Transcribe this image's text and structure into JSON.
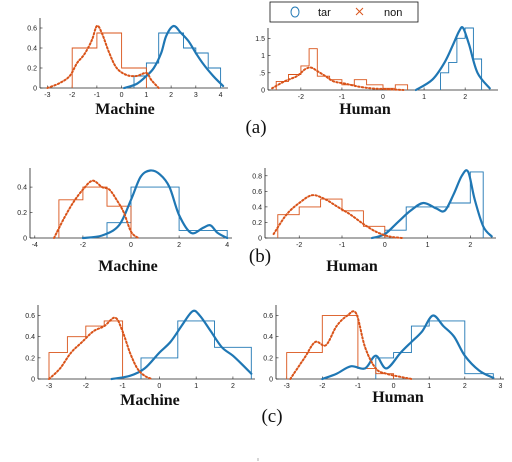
{
  "legend": {
    "items": [
      {
        "label": "tar",
        "marker": "o",
        "color": "#1f77b4"
      },
      {
        "label": "non",
        "marker": "x",
        "color": "#d95319"
      }
    ],
    "placement": "top-center"
  },
  "colors": {
    "tar": "#1f77b4",
    "non": "#d95319"
  },
  "panel_labels": [
    "(a)",
    "(b)",
    "(c)"
  ],
  "chart_data": [
    {
      "type": "area",
      "row": "(a)",
      "xlabel": "Machine",
      "ylabel": "",
      "xlim": [
        -3.3,
        4.3
      ],
      "ylim": [
        0,
        0.7
      ],
      "xticks": [
        -3,
        -2,
        -1,
        0,
        1,
        2,
        3,
        4
      ],
      "yticks": [
        0,
        0.2,
        0.4,
        0.6
      ],
      "xtick_labels": [
        "-3",
        "-2",
        "-1",
        "0",
        "1",
        "2",
        "3",
        "4"
      ],
      "ytick_labels": [
        "0",
        "0.2",
        "0.4",
        "0.6"
      ],
      "series": [
        {
          "name": "tar",
          "style": "solid",
          "color": "#1f77b4",
          "x": [
            0.1,
            0.6,
            1.0,
            1.3,
            1.6,
            1.8,
            2.1,
            2.4,
            2.7,
            3.0,
            3.3,
            3.7,
            4.1
          ],
          "y": [
            0.0,
            0.04,
            0.12,
            0.2,
            0.35,
            0.52,
            0.62,
            0.55,
            0.47,
            0.35,
            0.24,
            0.12,
            0.02
          ]
        },
        {
          "name": "non",
          "style": "dotted",
          "color": "#d95319",
          "x": [
            -3.0,
            -2.5,
            -2.1,
            -1.8,
            -1.5,
            -1.2,
            -1.0,
            -0.8,
            -0.5,
            -0.2,
            0.2,
            0.6,
            1.0,
            1.2,
            1.5
          ],
          "y": [
            0.0,
            0.05,
            0.12,
            0.25,
            0.34,
            0.48,
            0.62,
            0.55,
            0.35,
            0.2,
            0.13,
            0.12,
            0.15,
            0.08,
            0.0
          ]
        }
      ],
      "histograms": [
        {
          "name": "tar",
          "color": "#1f77b4",
          "edges": [
            0.5,
            1.0,
            1.5,
            2.0,
            2.5,
            3.0,
            3.5,
            4.0
          ],
          "heights": [
            0.12,
            0.25,
            0.55,
            0.55,
            0.4,
            0.35,
            0.2
          ]
        },
        {
          "name": "non",
          "color": "#d95319",
          "edges": [
            -2.0,
            -1.0,
            0.0,
            1.0
          ],
          "heights": [
            0.4,
            0.55,
            0.2
          ]
        }
      ]
    },
    {
      "type": "area",
      "row": "(a)",
      "xlabel": "Human",
      "ylabel": "",
      "xlim": [
        -2.8,
        2.8
      ],
      "ylim": [
        0,
        1.8
      ],
      "xticks": [
        -2,
        -1,
        0,
        1,
        2
      ],
      "yticks": [
        0,
        0.5,
        1,
        1.5
      ],
      "xtick_labels": [
        "-2",
        "-1",
        "0",
        "1",
        "2"
      ],
      "ytick_labels": [
        "0",
        ".5",
        "1",
        "1.5"
      ],
      "series": [
        {
          "name": "tar",
          "style": "solid",
          "color": "#1f77b4",
          "x": [
            0.8,
            1.2,
            1.5,
            1.7,
            1.85,
            1.95,
            2.1,
            2.3,
            2.6
          ],
          "y": [
            0.0,
            0.3,
            0.8,
            1.3,
            1.7,
            1.8,
            1.3,
            0.5,
            0.05
          ]
        },
        {
          "name": "non",
          "style": "dotted",
          "color": "#d95319",
          "x": [
            -2.7,
            -2.4,
            -2.1,
            -1.9,
            -1.75,
            -1.6,
            -1.4,
            -1.2,
            -0.9,
            -0.6,
            -0.3,
            0.0,
            0.5
          ],
          "y": [
            0.05,
            0.25,
            0.4,
            0.6,
            0.65,
            0.55,
            0.4,
            0.25,
            0.18,
            0.1,
            0.05,
            0.03,
            0.0
          ]
        }
      ],
      "histograms": [
        {
          "name": "tar",
          "color": "#1f77b4",
          "edges": [
            1.4,
            1.6,
            1.8,
            2.0,
            2.2,
            2.4
          ],
          "heights": [
            0.5,
            0.8,
            1.5,
            1.8,
            0.9
          ]
        },
        {
          "name": "non",
          "color": "#d95319",
          "edges": [
            -2.6,
            -2.3,
            -2.0,
            -1.8,
            -1.6,
            -1.3,
            -1.0,
            -0.7,
            -0.4,
            0.0,
            0.3,
            0.6
          ],
          "heights": [
            0.25,
            0.45,
            0.7,
            1.2,
            0.4,
            0.3,
            0.15,
            0.3,
            0.15,
            0.05,
            0.15
          ]
        }
      ]
    },
    {
      "type": "area",
      "row": "(b)",
      "xlabel": "Machine",
      "ylabel": "",
      "xlim": [
        -4.2,
        4.2
      ],
      "ylim": [
        0,
        0.55
      ],
      "xticks": [
        -4,
        -2,
        0,
        2,
        4
      ],
      "yticks": [
        0,
        0.2,
        0.4
      ],
      "xtick_labels": [
        "-4",
        "-2",
        "0",
        "2",
        "4"
      ],
      "ytick_labels": [
        "0",
        "0.2",
        "0.4"
      ],
      "series": [
        {
          "name": "tar",
          "style": "solid",
          "color": "#1f77b4",
          "x": [
            -2.0,
            -1.2,
            -0.5,
            0.0,
            0.4,
            0.8,
            1.2,
            1.6,
            2.0,
            2.5,
            3.0,
            3.3,
            3.6,
            4.0
          ],
          "y": [
            0.0,
            0.02,
            0.1,
            0.3,
            0.48,
            0.53,
            0.5,
            0.4,
            0.18,
            0.04,
            0.08,
            0.1,
            0.04,
            0.0
          ]
        },
        {
          "name": "non",
          "style": "dotted",
          "color": "#d95319",
          "x": [
            -3.2,
            -2.8,
            -2.4,
            -2.0,
            -1.6,
            -1.2,
            -0.9,
            -0.6,
            -0.3,
            0.0,
            0.3
          ],
          "y": [
            0.0,
            0.15,
            0.28,
            0.38,
            0.45,
            0.4,
            0.38,
            0.3,
            0.2,
            0.05,
            0.0
          ]
        }
      ],
      "histograms": [
        {
          "name": "tar",
          "color": "#1f77b4",
          "edges": [
            -1.0,
            0.0,
            2.0,
            4.0
          ],
          "heights": [
            0.12,
            0.4,
            0.06
          ]
        },
        {
          "name": "non",
          "color": "#d95319",
          "edges": [
            -3.0,
            -2.0,
            -1.0,
            0.0
          ],
          "heights": [
            0.3,
            0.4,
            0.25
          ]
        }
      ]
    },
    {
      "type": "area",
      "row": "(b)",
      "xlabel": "Human",
      "ylabel": "",
      "xlim": [
        -2.8,
        2.6
      ],
      "ylim": [
        0,
        0.9
      ],
      "xticks": [
        -2,
        -1,
        0,
        1,
        2
      ],
      "yticks": [
        0,
        0.2,
        0.4,
        0.6,
        0.8
      ],
      "xtick_labels": [
        "-2",
        "-1",
        "0",
        "1",
        "2"
      ],
      "ytick_labels": [
        "0",
        "0.2",
        "0.4",
        "0.6",
        "0.8"
      ],
      "series": [
        {
          "name": "tar",
          "style": "solid",
          "color": "#1f77b4",
          "x": [
            -0.3,
            0.0,
            0.3,
            0.6,
            0.9,
            1.2,
            1.4,
            1.6,
            1.8,
            1.95,
            2.1,
            2.3,
            2.5
          ],
          "y": [
            0.0,
            0.05,
            0.2,
            0.35,
            0.45,
            0.38,
            0.35,
            0.55,
            0.8,
            0.85,
            0.5,
            0.15,
            0.02
          ]
        },
        {
          "name": "non",
          "style": "dotted",
          "color": "#d95319",
          "x": [
            -2.6,
            -2.3,
            -2.0,
            -1.7,
            -1.4,
            -1.1,
            -0.8,
            -0.5,
            -0.2,
            0.1,
            0.4
          ],
          "y": [
            0.05,
            0.3,
            0.45,
            0.55,
            0.5,
            0.4,
            0.3,
            0.18,
            0.08,
            0.02,
            0.0
          ]
        }
      ],
      "histograms": [
        {
          "name": "tar",
          "color": "#1f77b4",
          "edges": [
            0.0,
            0.5,
            1.0,
            1.5,
            2.0,
            2.3
          ],
          "heights": [
            0.1,
            0.4,
            0.4,
            0.45,
            0.85
          ]
        },
        {
          "name": "non",
          "color": "#d95319",
          "edges": [
            -2.5,
            -2.0,
            -1.5,
            -1.0,
            -0.5,
            0.0
          ],
          "heights": [
            0.3,
            0.4,
            0.5,
            0.35,
            0.15
          ]
        }
      ]
    },
    {
      "type": "area",
      "row": "(c)",
      "xlabel": "Machine",
      "ylabel": "",
      "xlim": [
        -3.3,
        2.6
      ],
      "ylim": [
        0,
        0.7
      ],
      "xticks": [
        -3,
        -2,
        -1,
        0,
        1,
        2
      ],
      "yticks": [
        0,
        0.2,
        0.4,
        0.6
      ],
      "xtick_labels": [
        "-3",
        "-2",
        "-1",
        "0",
        "1",
        "2"
      ],
      "ytick_labels": [
        "0",
        "0.2",
        "0.4",
        "0.6"
      ],
      "series": [
        {
          "name": "tar",
          "style": "solid",
          "color": "#1f77b4",
          "x": [
            -1.3,
            -0.8,
            -0.4,
            0.0,
            0.3,
            0.6,
            0.9,
            1.1,
            1.4,
            1.7,
            2.0,
            2.3,
            2.5
          ],
          "y": [
            0.0,
            0.03,
            0.1,
            0.25,
            0.35,
            0.5,
            0.64,
            0.6,
            0.45,
            0.3,
            0.22,
            0.12,
            0.05
          ]
        },
        {
          "name": "non",
          "style": "dotted",
          "color": "#d95319",
          "x": [
            -3.0,
            -2.7,
            -2.4,
            -2.1,
            -1.8,
            -1.5,
            -1.2,
            -1.0,
            -0.8,
            -0.6,
            -0.4,
            -0.2
          ],
          "y": [
            0.0,
            0.1,
            0.25,
            0.35,
            0.45,
            0.5,
            0.58,
            0.45,
            0.25,
            0.1,
            0.03,
            0.0
          ]
        }
      ],
      "histograms": [
        {
          "name": "tar",
          "color": "#1f77b4",
          "edges": [
            -0.5,
            0.5,
            1.5,
            2.5
          ],
          "heights": [
            0.2,
            0.55,
            0.3
          ]
        },
        {
          "name": "non",
          "color": "#d95319",
          "edges": [
            -3.0,
            -2.5,
            -2.0,
            -1.5,
            -1.0
          ],
          "heights": [
            0.25,
            0.4,
            0.5,
            0.55
          ]
        }
      ]
    },
    {
      "type": "area",
      "row": "(c)",
      "xlabel": "Human",
      "ylabel": "",
      "xlim": [
        -3.3,
        3.1
      ],
      "ylim": [
        0,
        0.7
      ],
      "xticks": [
        -3,
        -2,
        -1,
        0,
        1,
        2,
        3
      ],
      "yticks": [
        0,
        0.2,
        0.4,
        0.6
      ],
      "xtick_labels": [
        "-3",
        "-2",
        "-1",
        "0",
        "1",
        "2",
        "3"
      ],
      "ytick_labels": [
        "0",
        "0.2",
        "0.4",
        "0.6"
      ],
      "series": [
        {
          "name": "tar",
          "style": "solid",
          "color": "#1f77b4",
          "x": [
            -2.0,
            -1.6,
            -1.2,
            -0.8,
            -0.5,
            -0.2,
            0.2,
            0.5,
            0.8,
            1.1,
            1.4,
            1.7,
            2.0,
            2.4,
            2.8
          ],
          "y": [
            0.0,
            0.05,
            0.12,
            0.1,
            0.22,
            0.1,
            0.25,
            0.35,
            0.45,
            0.6,
            0.5,
            0.4,
            0.22,
            0.08,
            0.01
          ]
        },
        {
          "name": "non",
          "style": "dotted",
          "color": "#d95319",
          "x": [
            -2.9,
            -2.5,
            -2.2,
            -1.9,
            -1.6,
            -1.3,
            -1.05,
            -0.8,
            -0.5,
            -0.2,
            0.2,
            0.5
          ],
          "y": [
            0.0,
            0.2,
            0.35,
            0.32,
            0.5,
            0.6,
            0.62,
            0.3,
            0.1,
            0.05,
            0.02,
            0.0
          ]
        }
      ],
      "histograms": [
        {
          "name": "tar",
          "color": "#1f77b4",
          "edges": [
            -0.5,
            0.0,
            0.5,
            1.0,
            2.0,
            2.8
          ],
          "heights": [
            0.2,
            0.25,
            0.5,
            0.55,
            0.05
          ]
        },
        {
          "name": "non",
          "color": "#d95319",
          "edges": [
            -3.0,
            -2.0,
            -1.0,
            -0.5,
            0.0
          ],
          "heights": [
            0.25,
            0.6,
            0.1,
            0.05
          ]
        }
      ]
    }
  ]
}
